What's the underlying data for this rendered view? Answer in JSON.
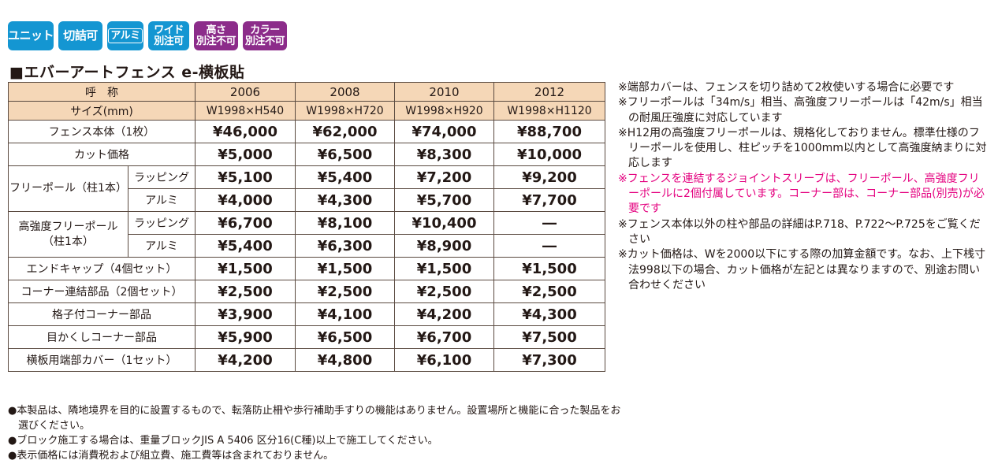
{
  "badges": [
    {
      "lines": [
        "ユニット"
      ],
      "color": "#1496d2"
    },
    {
      "lines": [
        "切詰可"
      ],
      "color": "#1496d2"
    },
    {
      "lines": [
        "アルミ"
      ],
      "color": "#1496d2"
    },
    {
      "lines": [
        "ワイド",
        "別注可"
      ],
      "color": "#1496d2"
    },
    {
      "lines": [
        "高さ",
        "別注不可"
      ],
      "color": "#8c2c8a"
    },
    {
      "lines": [
        "カラー",
        "別注不可"
      ],
      "color": "#8c2c8a"
    }
  ],
  "title": "■エバーアートフェンス e-横板貼",
  "table": {
    "header_label": "呼　称",
    "columns": [
      "2006",
      "2008",
      "2010",
      "2012"
    ],
    "size_label": "サイズ(mm)",
    "sizes": [
      "W1998×H540",
      "W1998×H720",
      "W1998×H920",
      "W1998×H1120"
    ],
    "rows": {
      "fence": {
        "name": "フェンス本体（1枚）",
        "values": [
          "¥46,000",
          "¥62,000",
          "¥74,000",
          "¥88,700"
        ]
      },
      "cut": {
        "name": "カット価格",
        "values": [
          "¥5,000",
          "¥6,500",
          "¥8,300",
          "¥10,000"
        ]
      },
      "free_pole": {
        "name": "フリーポール（柱1本）",
        "wrapping": {
          "name": "ラッピング",
          "values": [
            "¥5,100",
            "¥5,400",
            "¥7,200",
            "¥9,200"
          ]
        },
        "alumi": {
          "name": "アルミ",
          "values": [
            "¥4,000",
            "¥4,300",
            "¥5,700",
            "¥7,700"
          ]
        }
      },
      "strong_pole": {
        "name1": "高強度フリーポール",
        "name2": "（柱1本）",
        "wrapping": {
          "name": "ラッピング",
          "values": [
            "¥6,700",
            "¥8,100",
            "¥10,400",
            "―"
          ]
        },
        "alumi": {
          "name": "アルミ",
          "values": [
            "¥5,400",
            "¥6,300",
            "¥8,900",
            "―"
          ]
        }
      },
      "end_cap": {
        "name": "エンドキャップ（4個セット）",
        "values": [
          "¥1,500",
          "¥1,500",
          "¥1,500",
          "¥1,500"
        ]
      },
      "corner_joint": {
        "name": "コーナー連結部品（2個セット）",
        "values": [
          "¥2,500",
          "¥2,500",
          "¥2,500",
          "¥2,500"
        ]
      },
      "lattice_corner": {
        "name": "格子付コーナー部品",
        "values": [
          "¥3,900",
          "¥4,100",
          "¥4,200",
          "¥4,300"
        ]
      },
      "blind_corner": {
        "name": "目かくしコーナー部品",
        "values": [
          "¥5,900",
          "¥6,500",
          "¥6,700",
          "¥7,500"
        ]
      },
      "end_cover": {
        "name": "横板用端部カバー（1セット）",
        "values": [
          "¥4,200",
          "¥4,800",
          "¥6,100",
          "¥7,300"
        ]
      }
    }
  },
  "notes": [
    {
      "text": "※端部カバーは、フェンスを切り詰めて2枚使いする場合に必要です",
      "pink": false
    },
    {
      "text": "※フリーポールは「34m/s」相当、高強度フリーポールは「42m/s」相当の耐風圧強度に対応しています",
      "pink": false
    },
    {
      "text": "※H12用の高強度フリーポールは、規格化しておりません。標準仕様のフリーポールを使用し、柱ピッチを1000mm以内として高強度納まりに対応します",
      "pink": false
    },
    {
      "text": "※フェンスを連結するジョイントスリーブは、フリーポール、高強度フリーポールに2個付属しています。コーナー部は、コーナー部品(別売)が必要です",
      "pink": true
    },
    {
      "text": "※フェンス本体以外の柱や部品の詳細はP.718、P.722～P.725をご覧ください",
      "pink": false
    },
    {
      "text": "※カット価格は、Wを2000以下にする際の加算金額です。なお、上下桟寸法998以下の場合、カット価格が左記とは異なりますので、別途お問い合わせください",
      "pink": false
    }
  ],
  "bottom_notes": [
    "●本製品は、隣地境界を目的に設置するもので、転落防止柵や歩行補助手すりの機能はありません。設置場所と機能に合った製品をお選びください。",
    "●ブロック施工する場合は、重量ブロックJIS A 5406 区分16(C種)以上で施工してください。",
    "●表示価格には消費税および組立費、施工費等は含まれておりません。"
  ],
  "colors": {
    "header_bg": "#f5d7b7",
    "badge_blue": "#1496d2",
    "badge_purple": "#8c2c8a",
    "pink_note": "#e4007f"
  }
}
